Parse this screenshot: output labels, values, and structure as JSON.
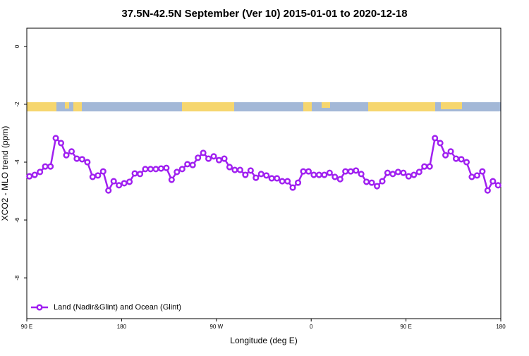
{
  "chart_data": {
    "type": "line",
    "title": "37.5N-42.5N September (Ver 10)   2015-01-01 to 2020-12-18",
    "x_label": "Longitude (deg E)",
    "y_label": "XCO2 - MLO trend (ppm)",
    "xlim": [
      90,
      540
    ],
    "xticks": [
      {
        "value": 90,
        "label": "90 E"
      },
      {
        "value": 180,
        "label": "180"
      },
      {
        "value": 270,
        "label": "90 W"
      },
      {
        "value": 360,
        "label": "0"
      },
      {
        "value": 450,
        "label": "90 E"
      },
      {
        "value": 540,
        "label": "180"
      }
    ],
    "ylim": [
      -9.41,
      0.63
    ],
    "yticks": [
      0,
      -2,
      -4,
      -6,
      -8
    ],
    "legend": "bottom-left",
    "x": [
      92.5,
      97.5,
      102.5,
      107.5,
      112.5,
      117.5,
      122.5,
      127.5,
      132.5,
      137.5,
      142.5,
      147.5,
      152.5,
      157.5,
      162.5,
      167.5,
      172.5,
      177.5,
      182.5,
      187.5,
      192.5,
      197.5,
      202.5,
      207.5,
      212.5,
      217.5,
      222.5,
      227.5,
      232.5,
      237.5,
      242.5,
      247.5,
      252.5,
      257.5,
      262.5,
      267.5,
      272.5,
      277.5,
      282.5,
      287.5,
      292.5,
      297.5,
      302.5,
      307.5,
      312.5,
      317.5,
      322.5,
      327.5,
      332.5,
      337.5,
      342.5,
      347.5,
      352.5,
      357.5,
      362.5,
      367.5,
      372.5,
      377.5,
      382.5,
      387.5,
      392.5,
      397.5,
      402.5,
      407.5,
      412.5,
      417.5,
      422.5,
      427.5,
      432.5,
      437.5,
      442.5,
      447.5,
      452.5,
      457.5,
      462.5,
      467.5,
      472.5,
      477.5,
      482.5,
      487.5,
      492.5,
      497.5,
      502.5,
      507.5,
      512.5,
      517.5,
      522.5,
      527.5,
      532.5,
      537.5
    ],
    "series": [
      {
        "name": "Land (Nadir&Glint) and Ocean (Glint)",
        "color": "#a020f0",
        "values": [
          -4.49,
          -4.44,
          -4.34,
          -4.15,
          -4.15,
          -3.17,
          -3.34,
          -3.76,
          -3.63,
          -3.88,
          -3.9,
          -4.0,
          -4.51,
          -4.46,
          -4.32,
          -4.98,
          -4.66,
          -4.8,
          -4.73,
          -4.68,
          -4.39,
          -4.41,
          -4.24,
          -4.24,
          -4.24,
          -4.22,
          -4.2,
          -4.61,
          -4.34,
          -4.24,
          -4.07,
          -4.1,
          -3.85,
          -3.68,
          -3.88,
          -3.8,
          -3.93,
          -3.88,
          -4.17,
          -4.27,
          -4.27,
          -4.44,
          -4.29,
          -4.54,
          -4.41,
          -4.46,
          -4.56,
          -4.56,
          -4.66,
          -4.66,
          -4.88,
          -4.71,
          -4.32,
          -4.32,
          -4.44,
          -4.44,
          -4.44,
          -4.37,
          -4.51,
          -4.59,
          -4.32,
          -4.32,
          -4.29,
          -4.41,
          -4.68,
          -4.71,
          -4.83,
          -4.66,
          -4.37,
          -4.41,
          -4.34,
          -4.37,
          -4.49,
          -4.44,
          -4.34,
          -4.15,
          -4.15,
          -3.17,
          -3.34,
          -3.76,
          -3.63,
          -3.88,
          -3.9,
          -4.0,
          -4.51,
          -4.46,
          -4.32,
          -4.98,
          -4.66,
          -4.8
        ]
      }
    ]
  }
}
